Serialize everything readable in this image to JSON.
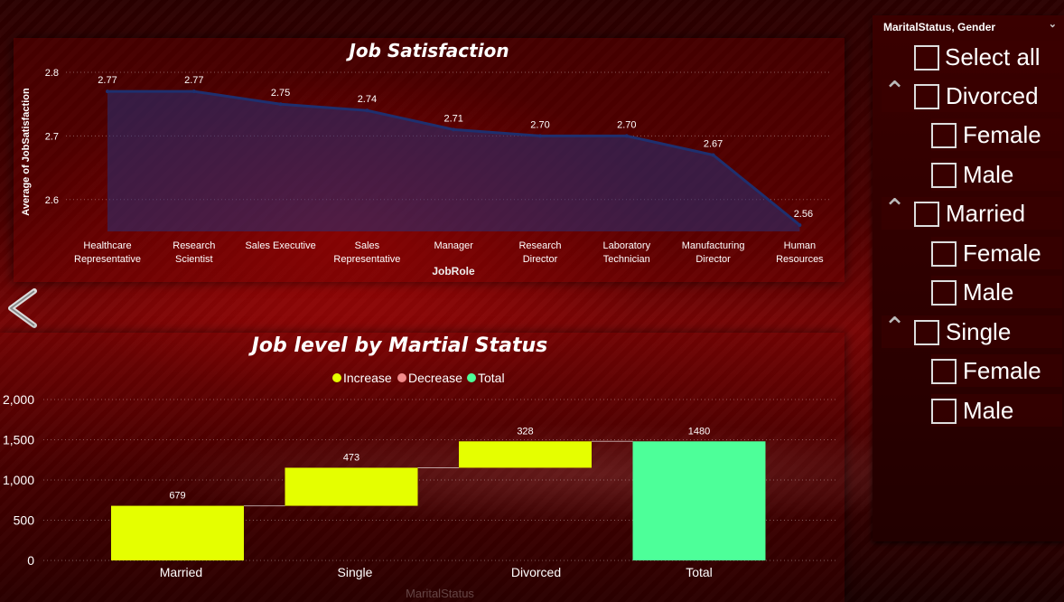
{
  "job_satisfaction": {
    "title": "Job Satisfaction",
    "xlabel": "JobRole",
    "ylabel": "Average of JobSatisfaction",
    "chart_data": {
      "type": "area",
      "title": "Job Satisfaction",
      "xlabel": "JobRole",
      "ylabel": "Average of JobSatisfaction",
      "ylim": [
        2.55,
        2.8
      ],
      "yticks": [
        "2.6",
        "2.7",
        "2.8"
      ],
      "ytick_values": [
        2.6,
        2.7,
        2.8
      ],
      "categories": [
        "Healthcare Representative",
        "Research Scientist",
        "Sales Executive",
        "Sales Representative",
        "Manager",
        "Research Director",
        "Laboratory Technician",
        "Manufacturing Director",
        "Human Resources"
      ],
      "values": [
        2.77,
        2.77,
        2.75,
        2.74,
        2.71,
        2.7,
        2.7,
        2.67,
        2.56
      ],
      "value_labels": [
        "2.77",
        "2.77",
        "2.75",
        "2.74",
        "2.71",
        "2.70",
        "2.70",
        "2.67",
        "2.56"
      ],
      "grid": true,
      "color": "#1f2f6e"
    }
  },
  "job_level": {
    "title": "Job level by Martial Status",
    "legend": [
      "Increase",
      "Decrease",
      "Total"
    ],
    "legend_colors": [
      "#e5ff00",
      "#f28b8b",
      "#4dff99"
    ],
    "xlabel": "MaritalStatus",
    "chart_data": {
      "type": "bar",
      "subtype": "waterfall",
      "title": "Job level by Martial Status",
      "xlabel": "MaritalStatus",
      "ylim": [
        0,
        2000
      ],
      "yticks": [
        "0",
        "500",
        "1,000",
        "1,500",
        "2,000"
      ],
      "ytick_values": [
        0,
        500,
        1000,
        1500,
        2000
      ],
      "categories": [
        "Married",
        "Single",
        "Divorced",
        "Total"
      ],
      "values": [
        679,
        473,
        328,
        1480
      ],
      "value_labels": [
        "679",
        "473",
        "328",
        "1480"
      ],
      "kinds": [
        "increase",
        "increase",
        "increase",
        "total"
      ],
      "legend_position": "top-center",
      "grid": true
    }
  },
  "slicer": {
    "header": "MaritalStatus, Gender",
    "items": [
      {
        "label": "Select all",
        "level": 0,
        "caret": false
      },
      {
        "label": "Divorced",
        "level": 1,
        "caret": true
      },
      {
        "label": "Female",
        "level": 2,
        "caret": false
      },
      {
        "label": "Male",
        "level": 2,
        "caret": false
      },
      {
        "label": "Married",
        "level": 1,
        "caret": true
      },
      {
        "label": "Female",
        "level": 2,
        "caret": false
      },
      {
        "label": "Male",
        "level": 2,
        "caret": false
      },
      {
        "label": "Single",
        "level": 1,
        "caret": true
      },
      {
        "label": "Female",
        "level": 2,
        "caret": false
      },
      {
        "label": "Male",
        "level": 2,
        "caret": false
      }
    ]
  },
  "icons": {
    "back": "chevron-left-icon",
    "collapse": "chevron-up-icon",
    "dropdown": "chevron-down-icon"
  }
}
